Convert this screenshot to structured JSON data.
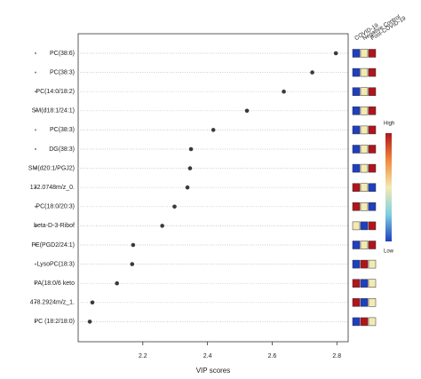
{
  "chart_data": {
    "type": "dot",
    "x_label": "VIP scores",
    "categories": [
      "PC(38:6)",
      "PC(38:3)",
      "PC(14:0/18:2)",
      "SM(d18:1/24:1)",
      "PC(38:3)",
      "DG(38:3)",
      "SM(d20:1/PGJ2)",
      "132.0748m/z_0.",
      "PC(18:0/20:3)",
      "beta-D-3-Ribof",
      "PE(PGD2/24:1)",
      "LysoPC(18:3)",
      "PA(18:0/6 keto",
      "478.2924m/z_1.",
      "PC (18:2/18:0)"
    ],
    "values": [
      2.797,
      2.724,
      2.636,
      2.522,
      2.418,
      2.349,
      2.346,
      2.338,
      2.298,
      2.26,
      2.17,
      2.167,
      2.12,
      2.044,
      2.036
    ],
    "color": "#3a3a3a",
    "xlim": [
      2.0,
      2.835
    ],
    "xticks": [
      2.2,
      2.4,
      2.6,
      2.8
    ],
    "grid": true,
    "heatmap": {
      "columns": [
        "COVID-19",
        "Negative Control",
        "Post-COVID-19"
      ],
      "colors": [
        [
          "#1f3fbf",
          "#f3e9b3",
          "#b0141c"
        ],
        [
          "#1f3fbf",
          "#f3e9b3",
          "#b0141c"
        ],
        [
          "#1f3fbf",
          "#f3e9b3",
          "#b0141c"
        ],
        [
          "#1f3fbf",
          "#f3e9b3",
          "#b0141c"
        ],
        [
          "#1f3fbf",
          "#f3e9b3",
          "#b0141c"
        ],
        [
          "#1f3fbf",
          "#f3e9b3",
          "#b0141c"
        ],
        [
          "#1f3fbf",
          "#f3e9b3",
          "#b0141c"
        ],
        [
          "#b0141c",
          "#f3e9b3",
          "#1f3fbf"
        ],
        [
          "#b0141c",
          "#f3e9b3",
          "#1f3fbf"
        ],
        [
          "#f3e9b3",
          "#1f3fbf",
          "#b0141c"
        ],
        [
          "#1f3fbf",
          "#f3e9b3",
          "#b0141c"
        ],
        [
          "#1f3fbf",
          "#b0141c",
          "#f3e9b3"
        ],
        [
          "#b0141c",
          "#1f3fbf",
          "#f3e9b3"
        ],
        [
          "#b0141c",
          "#1f3fbf",
          "#f3e9b3"
        ],
        [
          "#1f3fbf",
          "#b0141c",
          "#f3e9b3"
        ]
      ]
    },
    "legend": {
      "high": "High",
      "low": "Low",
      "colors": [
        "#b0141c",
        "#f08a3c",
        "#f3e9b3",
        "#7fd0e0",
        "#1f3fbf"
      ]
    }
  }
}
